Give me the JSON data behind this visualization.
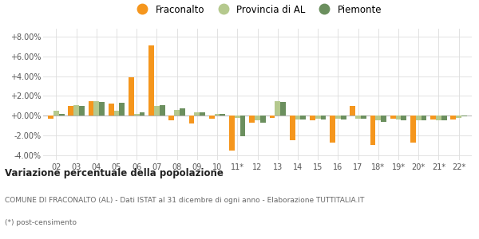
{
  "years": [
    "02",
    "03",
    "04",
    "05",
    "06",
    "07",
    "08",
    "09",
    "10",
    "11*",
    "12",
    "13",
    "14",
    "15",
    "16",
    "17",
    "18*",
    "19*",
    "20*",
    "21*",
    "22*"
  ],
  "fraconalto": [
    -0.3,
    1.0,
    1.5,
    1.2,
    3.9,
    7.1,
    -0.5,
    -0.8,
    -0.3,
    -3.5,
    -0.7,
    -0.2,
    -2.5,
    -0.5,
    -2.7,
    1.0,
    -3.0,
    -0.3,
    -2.7,
    -0.4,
    -0.4
  ],
  "provincia_al": [
    0.5,
    1.1,
    1.5,
    0.5,
    0.2,
    1.0,
    0.6,
    0.3,
    0.2,
    -0.2,
    -0.5,
    1.5,
    -0.4,
    -0.3,
    -0.3,
    -0.3,
    -0.5,
    -0.4,
    -0.5,
    -0.5,
    -0.2
  ],
  "piemonte": [
    0.2,
    1.0,
    1.4,
    1.3,
    0.3,
    1.1,
    0.7,
    0.3,
    0.2,
    -2.1,
    -0.7,
    1.4,
    -0.4,
    -0.4,
    -0.4,
    -0.3,
    -0.6,
    -0.5,
    -0.5,
    -0.5,
    -0.1
  ],
  "color_fraconalto": "#f5961d",
  "color_provincia": "#b5c98e",
  "color_piemonte": "#6b8f5e",
  "ylim_min": -4.5,
  "ylim_max": 8.8,
  "yticks": [
    -4.0,
    -2.0,
    0.0,
    2.0,
    4.0,
    6.0,
    8.0
  ],
  "bg_color": "#ffffff",
  "grid_color": "#dddddd",
  "title_bold": "Variazione percentuale della popolazione",
  "subtitle1": "COMUNE DI FRACONALTO (AL) - Dati ISTAT al 31 dicembre di ogni anno - Elaborazione TUTTITALIA.IT",
  "subtitle2": "(*) post-censimento",
  "bar_width": 0.27
}
